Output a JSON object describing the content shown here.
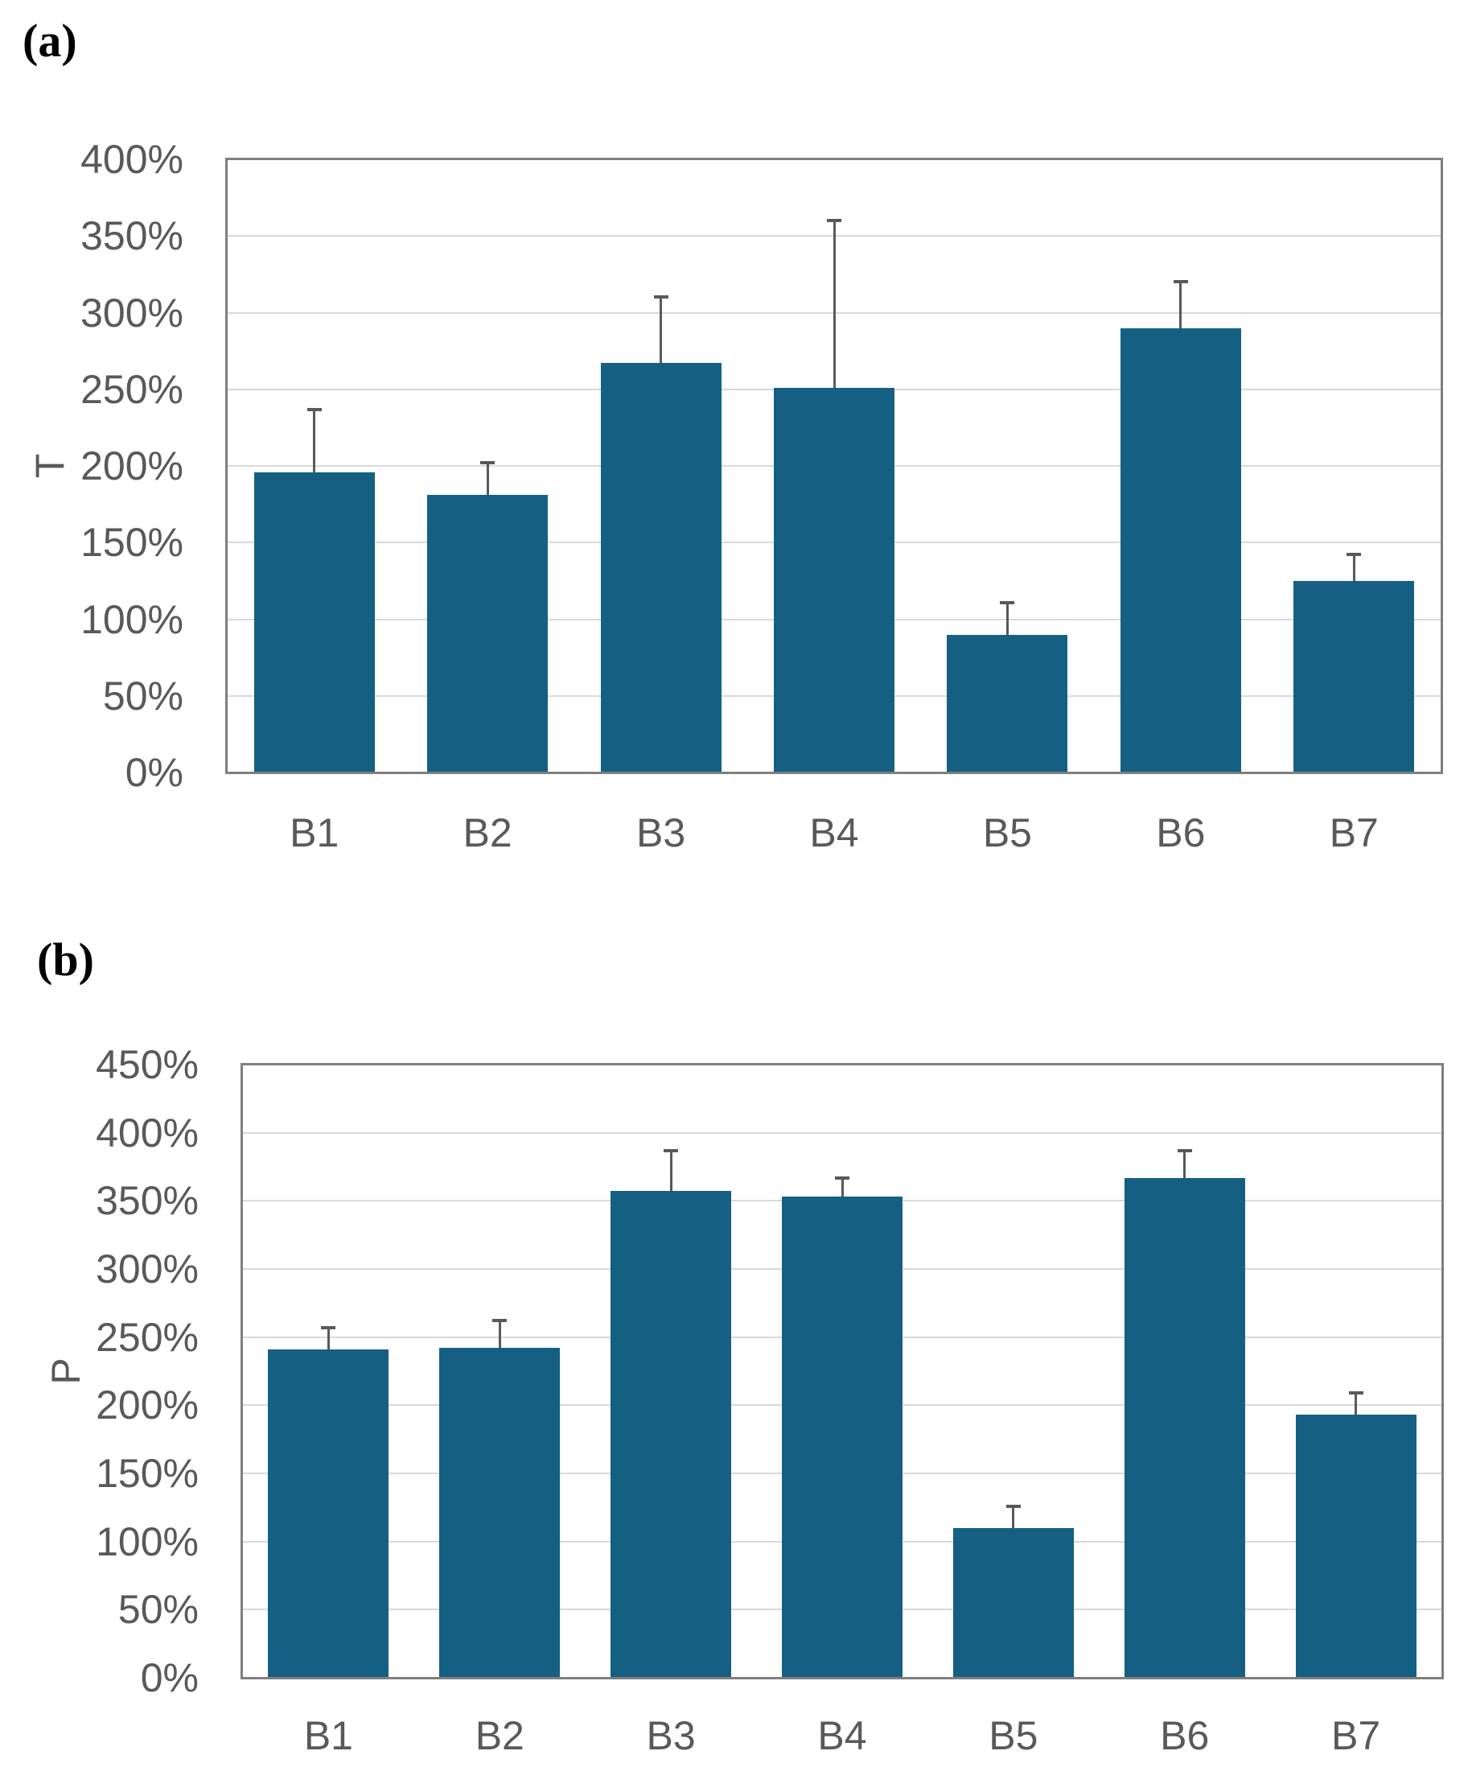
{
  "figure": {
    "background": "#FFFFFF",
    "panels": [
      "(a)",
      "(b)"
    ]
  },
  "colors": {
    "bar": "#156082",
    "error_bar": "#595959",
    "gridline": "#D9D9D9",
    "axis": "#7F7F7F",
    "tick_label": "#595959",
    "panel_label": "#000000"
  },
  "chart_data": [
    {
      "type": "bar",
      "panel_label": "(a)",
      "title": "",
      "xlabel": "",
      "ylabel": "T",
      "categories": [
        "B1",
        "B2",
        "B3",
        "B4",
        "B5",
        "B6",
        "B7"
      ],
      "values": [
        196,
        181,
        267,
        251,
        90,
        290,
        125
      ],
      "error_plus": [
        41,
        21,
        43,
        109,
        21,
        30,
        17
      ],
      "unit": "%",
      "ylim": [
        0,
        400
      ],
      "ytick_step": 50,
      "ytick_labels": [
        "0%",
        "50%",
        "100%",
        "150%",
        "200%",
        "250%",
        "300%",
        "350%",
        "400%"
      ],
      "grid": true,
      "legend_position": "none"
    },
    {
      "type": "bar",
      "panel_label": "(b)",
      "title": "",
      "xlabel": "",
      "ylabel": "P",
      "categories": [
        "B1",
        "B2",
        "B3",
        "B4",
        "B5",
        "B6",
        "B7"
      ],
      "values": [
        241,
        242,
        357,
        353,
        110,
        367,
        193
      ],
      "error_plus": [
        16,
        20,
        30,
        14,
        16,
        20,
        16
      ],
      "unit": "%",
      "ylim": [
        0,
        450
      ],
      "ytick_step": 50,
      "ytick_labels": [
        "0%",
        "50%",
        "100%",
        "150%",
        "200%",
        "250%",
        "300%",
        "350%",
        "400%",
        "450%"
      ],
      "grid": true,
      "legend_position": "none"
    }
  ]
}
